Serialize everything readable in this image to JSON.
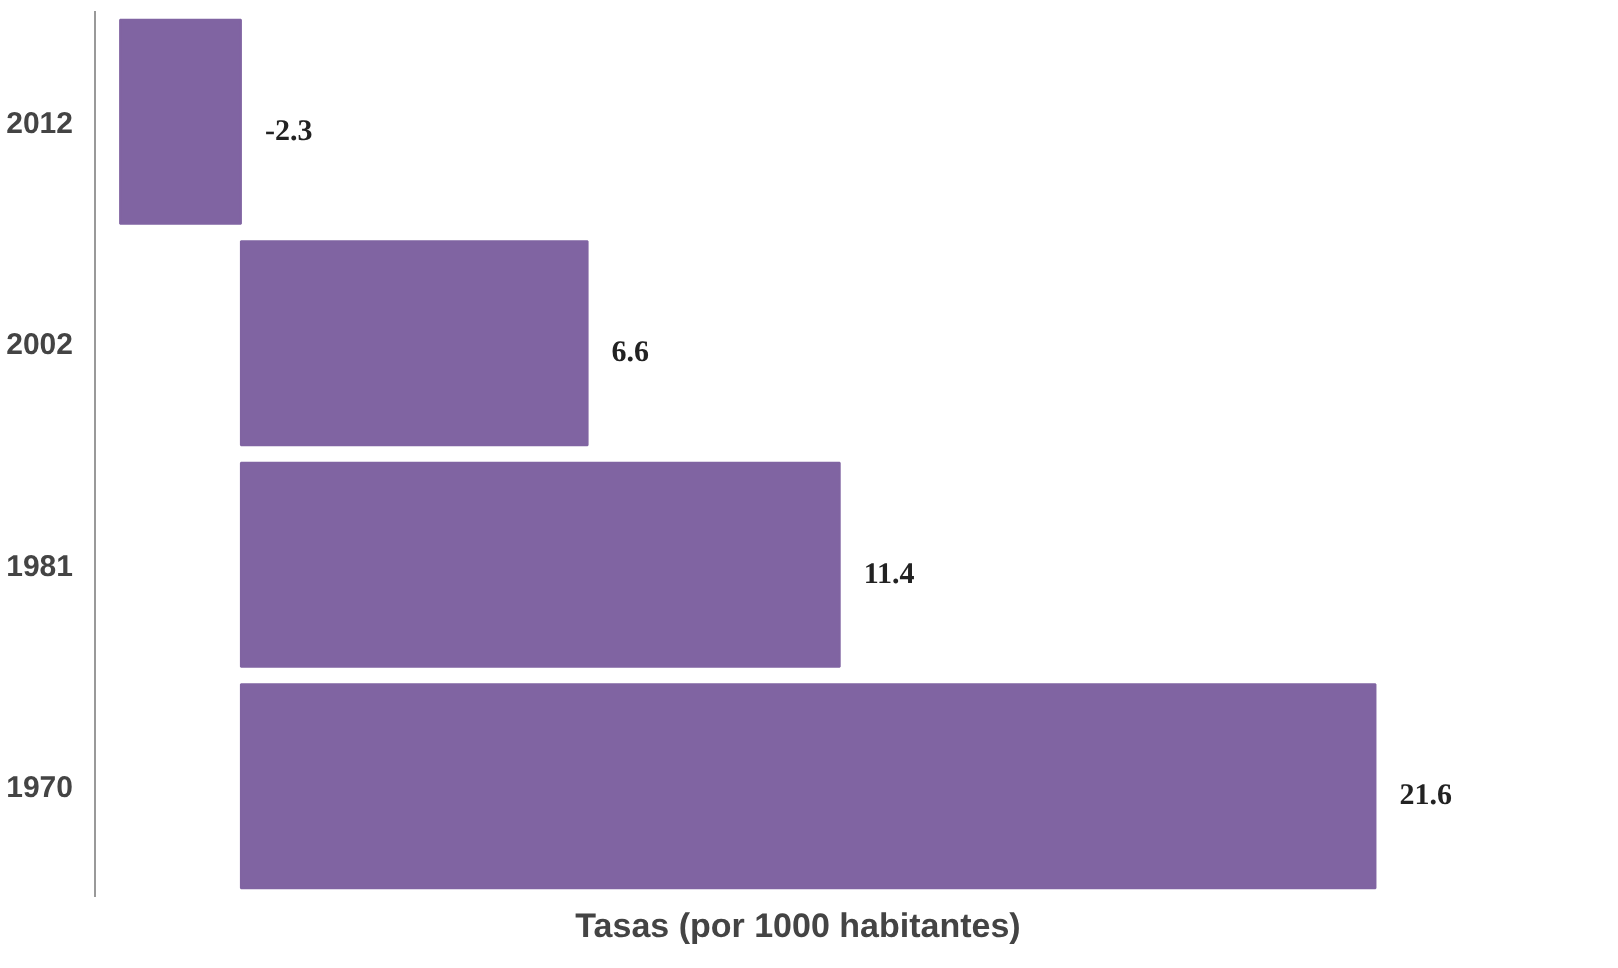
{
  "chart_data": {
    "type": "bar",
    "orientation": "horizontal",
    "xlabel": "Tasas (por 1000 habitantes)",
    "categories": [
      "2012",
      "2002",
      "1981",
      "1970"
    ],
    "series": [
      {
        "color": "#8064a2",
        "values": [
          -2.3,
          6.6,
          11.4,
          21.6
        ]
      }
    ],
    "data_labels": true,
    "grid": false,
    "tick_labels": "y"
  }
}
